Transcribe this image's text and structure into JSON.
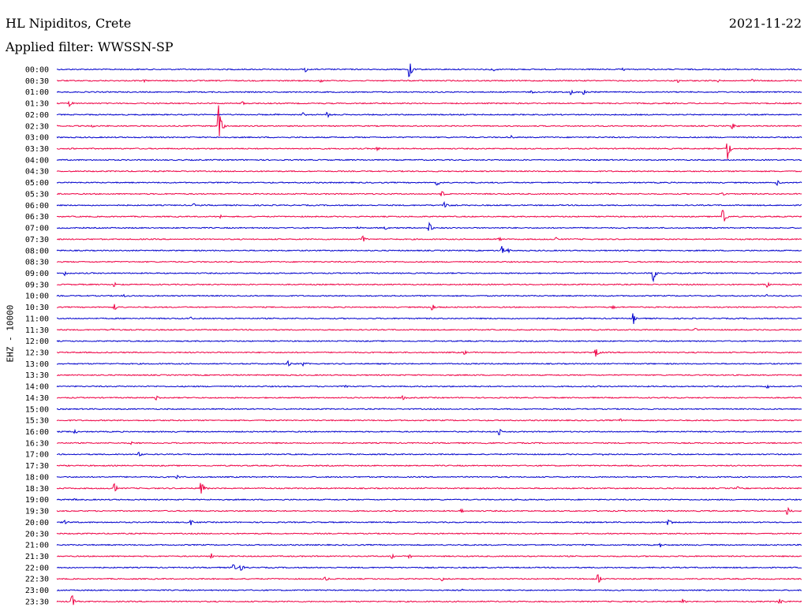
{
  "header": {
    "station": "HL Nipiditos, Crete",
    "filter": "Applied filter: WWSSN-SP",
    "date": "2021-11-22"
  },
  "chart_data": {
    "type": "line",
    "title": "HL Nipiditos, Crete",
    "subtitle": "Applied filter: WWSSN-SP",
    "ylabel": "EHZ - 10000",
    "row_labels": [
      "00:00",
      "00:30",
      "01:00",
      "01:30",
      "02:00",
      "02:30",
      "03:00",
      "03:30",
      "04:00",
      "04:30",
      "05:00",
      "05:30",
      "06:00",
      "06:30",
      "07:00",
      "07:30",
      "08:00",
      "08:30",
      "09:00",
      "09:30",
      "10:00",
      "10:30",
      "11:00",
      "11:30",
      "12:00",
      "12:30",
      "13:00",
      "13:30",
      "14:00",
      "14:30",
      "15:00",
      "15:30",
      "16:00",
      "16:30",
      "17:00",
      "17:30",
      "18:00",
      "18:30",
      "19:00",
      "19:30",
      "20:00",
      "20:30",
      "21:00",
      "21:30",
      "22:00",
      "22:30",
      "23:00",
      "23:30"
    ],
    "row_minutes": 30,
    "grid": false,
    "series_colors": [
      "#0000cc",
      "#ee0044"
    ],
    "events": [
      {
        "row": 0,
        "minute": 10.0,
        "amp": 0.6
      },
      {
        "row": 0,
        "minute": 14.2,
        "amp": 3.0
      },
      {
        "row": 0,
        "minute": 17.6,
        "amp": 0.4
      },
      {
        "row": 0,
        "minute": 22.8,
        "amp": 0.5
      },
      {
        "row": 1,
        "minute": 3.5,
        "amp": 0.3
      },
      {
        "row": 1,
        "minute": 10.6,
        "amp": 0.4
      },
      {
        "row": 1,
        "minute": 25.0,
        "amp": 0.5
      },
      {
        "row": 1,
        "minute": 26.6,
        "amp": 0.6
      },
      {
        "row": 1,
        "minute": 28.0,
        "amp": 0.5
      },
      {
        "row": 2,
        "minute": 19.1,
        "amp": 0.5
      },
      {
        "row": 2,
        "minute": 20.7,
        "amp": 0.8
      },
      {
        "row": 2,
        "minute": 21.2,
        "amp": 0.9
      },
      {
        "row": 3,
        "minute": 0.5,
        "amp": 0.8
      },
      {
        "row": 3,
        "minute": 7.5,
        "amp": 0.5
      },
      {
        "row": 4,
        "minute": 8.8,
        "amp": 0.4
      },
      {
        "row": 4,
        "minute": 9.9,
        "amp": 0.6
      },
      {
        "row": 4,
        "minute": 10.9,
        "amp": 0.7
      },
      {
        "row": 5,
        "minute": 1.4,
        "amp": 0.6
      },
      {
        "row": 5,
        "minute": 6.5,
        "amp": 7.0
      },
      {
        "row": 5,
        "minute": 27.2,
        "amp": 1.0
      },
      {
        "row": 6,
        "minute": 18.3,
        "amp": 0.4
      },
      {
        "row": 7,
        "minute": 0.5,
        "amp": 0.3
      },
      {
        "row": 7,
        "minute": 12.9,
        "amp": 0.4
      },
      {
        "row": 7,
        "minute": 27.0,
        "amp": 3.0
      },
      {
        "row": 10,
        "minute": 15.3,
        "amp": 0.8
      },
      {
        "row": 10,
        "minute": 29.0,
        "amp": 0.9
      },
      {
        "row": 11,
        "minute": 15.5,
        "amp": 1.0
      },
      {
        "row": 11,
        "minute": 26.8,
        "amp": 0.6
      },
      {
        "row": 12,
        "minute": 5.5,
        "amp": 0.5
      },
      {
        "row": 12,
        "minute": 15.6,
        "amp": 0.8
      },
      {
        "row": 13,
        "minute": 6.6,
        "amp": 0.5
      },
      {
        "row": 13,
        "minute": 26.8,
        "amp": 3.0
      },
      {
        "row": 14,
        "minute": 12.1,
        "amp": 0.5
      },
      {
        "row": 14,
        "minute": 13.2,
        "amp": 0.5
      },
      {
        "row": 14,
        "minute": 15.0,
        "amp": 1.5
      },
      {
        "row": 15,
        "minute": 12.3,
        "amp": 1.2
      },
      {
        "row": 15,
        "minute": 17.8,
        "amp": 0.5
      },
      {
        "row": 15,
        "minute": 20.1,
        "amp": 0.6
      },
      {
        "row": 16,
        "minute": 17.9,
        "amp": 1.7
      },
      {
        "row": 16,
        "minute": 18.2,
        "amp": 0.7
      },
      {
        "row": 18,
        "minute": 0.3,
        "amp": 0.5
      },
      {
        "row": 18,
        "minute": 24.0,
        "amp": 3.0
      },
      {
        "row": 19,
        "minute": 2.3,
        "amp": 0.8
      },
      {
        "row": 19,
        "minute": 28.6,
        "amp": 0.7
      },
      {
        "row": 20,
        "minute": 2.7,
        "amp": 0.3
      },
      {
        "row": 20,
        "minute": 28.6,
        "amp": 0.3
      },
      {
        "row": 21,
        "minute": 2.3,
        "amp": 1.0
      },
      {
        "row": 21,
        "minute": 15.1,
        "amp": 1.3
      },
      {
        "row": 21,
        "minute": 22.4,
        "amp": 0.5
      },
      {
        "row": 22,
        "minute": 5.4,
        "amp": 0.3
      },
      {
        "row": 22,
        "minute": 23.2,
        "amp": 1.8
      },
      {
        "row": 23,
        "minute": 2.2,
        "amp": 0.3
      },
      {
        "row": 23,
        "minute": 25.7,
        "amp": 0.5
      },
      {
        "row": 25,
        "minute": 16.4,
        "amp": 1.2
      },
      {
        "row": 25,
        "minute": 21.7,
        "amp": 1.6
      },
      {
        "row": 26,
        "minute": 9.3,
        "amp": 0.8
      },
      {
        "row": 26,
        "minute": 9.9,
        "amp": 0.6
      },
      {
        "row": 28,
        "minute": 11.6,
        "amp": 0.4
      },
      {
        "row": 28,
        "minute": 28.6,
        "amp": 0.5
      },
      {
        "row": 29,
        "minute": 4.0,
        "amp": 0.5
      },
      {
        "row": 29,
        "minute": 13.9,
        "amp": 0.6
      },
      {
        "row": 31,
        "minute": 22.7,
        "amp": 0.4
      },
      {
        "row": 32,
        "minute": 0.7,
        "amp": 0.7
      },
      {
        "row": 32,
        "minute": 17.8,
        "amp": 1.2
      },
      {
        "row": 33,
        "minute": 3.0,
        "amp": 0.4
      },
      {
        "row": 33,
        "minute": 17.3,
        "amp": 0.4
      },
      {
        "row": 34,
        "minute": 3.3,
        "amp": 0.8
      },
      {
        "row": 34,
        "minute": 22.0,
        "amp": 0.3
      },
      {
        "row": 36,
        "minute": 4.8,
        "amp": 0.6
      },
      {
        "row": 37,
        "minute": 2.3,
        "amp": 2.0
      },
      {
        "row": 37,
        "minute": 5.8,
        "amp": 2.5
      },
      {
        "row": 37,
        "minute": 27.4,
        "amp": 0.5
      },
      {
        "row": 38,
        "minute": 0.7,
        "amp": 0.4
      },
      {
        "row": 39,
        "minute": 16.3,
        "amp": 0.5
      },
      {
        "row": 39,
        "minute": 29.4,
        "amp": 1.6
      },
      {
        "row": 40,
        "minute": 0.3,
        "amp": 0.7
      },
      {
        "row": 40,
        "minute": 5.4,
        "amp": 0.7
      },
      {
        "row": 40,
        "minute": 24.6,
        "amp": 1.3
      },
      {
        "row": 42,
        "minute": 24.3,
        "amp": 0.5
      },
      {
        "row": 43,
        "minute": 6.2,
        "amp": 0.9
      },
      {
        "row": 43,
        "minute": 13.5,
        "amp": 0.8
      },
      {
        "row": 43,
        "minute": 14.2,
        "amp": 0.6
      },
      {
        "row": 44,
        "minute": 7.1,
        "amp": 1.1
      },
      {
        "row": 44,
        "minute": 7.4,
        "amp": 1.0
      },
      {
        "row": 45,
        "minute": 10.8,
        "amp": 0.8
      },
      {
        "row": 45,
        "minute": 15.5,
        "amp": 0.7
      },
      {
        "row": 45,
        "minute": 21.8,
        "amp": 1.6
      },
      {
        "row": 46,
        "minute": 16.3,
        "amp": 0.3
      },
      {
        "row": 47,
        "minute": 0.6,
        "amp": 2.0
      },
      {
        "row": 47,
        "minute": 25.2,
        "amp": 0.6
      },
      {
        "row": 47,
        "minute": 29.1,
        "amp": 0.6
      }
    ]
  }
}
